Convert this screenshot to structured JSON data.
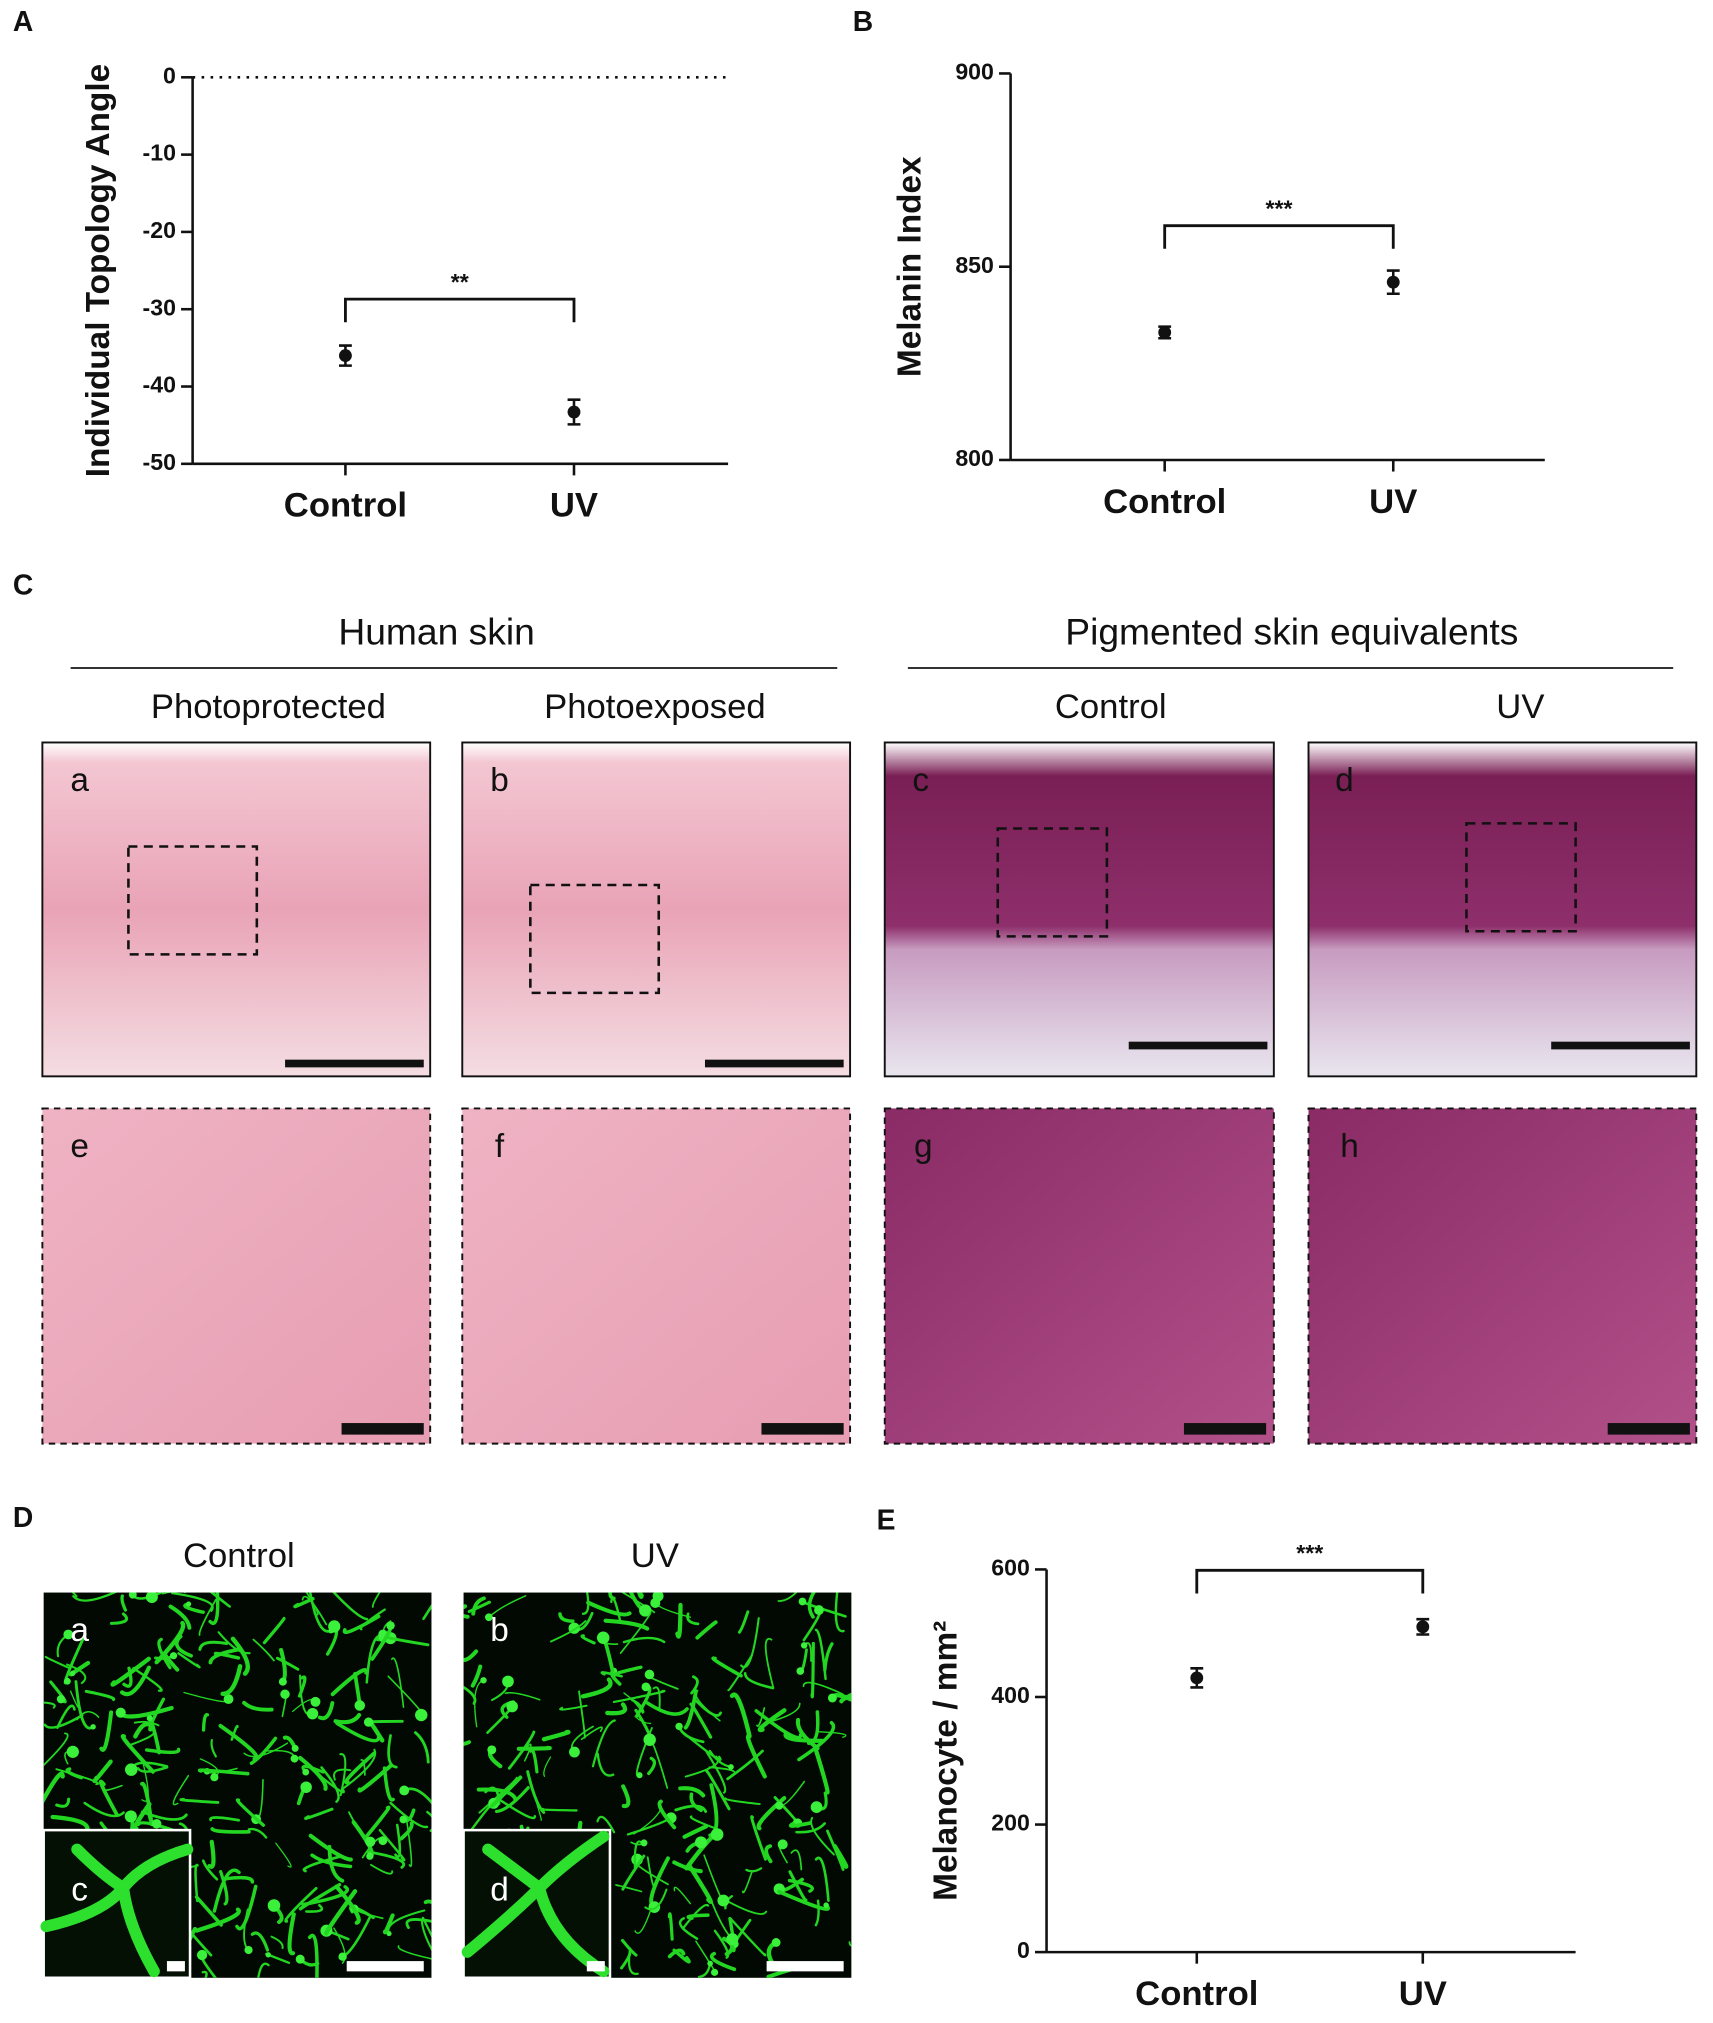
{
  "chart_data": [
    {
      "type": "dot",
      "panel": "A",
      "y_label": "Individual Topology Angle",
      "categories": [
        "Control",
        "UV"
      ],
      "values": [
        -36,
        -43.3
      ],
      "errors": [
        1.3,
        1.6
      ],
      "color": "#111111",
      "ylim": [
        -50,
        0
      ],
      "yticks": [
        0,
        -10,
        -20,
        -30,
        -40,
        -50
      ],
      "reference_line": 0,
      "annotation": "**"
    },
    {
      "type": "dot",
      "panel": "B",
      "y_label": "Melanin Index",
      "categories": [
        "Control",
        "UV"
      ],
      "values": [
        833,
        846
      ],
      "errors": [
        1.5,
        3
      ],
      "color": "#111111",
      "ylim": [
        800,
        900
      ],
      "yticks": [
        800,
        850,
        900
      ],
      "annotation": "***"
    },
    {
      "type": "dot",
      "panel": "E",
      "y_label": "Melanocyte / mm²",
      "categories": [
        "Control",
        "UV"
      ],
      "values": [
        430,
        510
      ],
      "errors": [
        15,
        12
      ],
      "color": "#111111",
      "ylim": [
        0,
        600
      ],
      "yticks": [
        0,
        200,
        400,
        600
      ],
      "annotation": "***"
    }
  ],
  "panel_c": {
    "label": "C",
    "groups": [
      "Human skin",
      "Pigmented skin equivalents"
    ],
    "columns": [
      "Photoprotected",
      "Photoexposed",
      "Control",
      "UV"
    ],
    "images": [
      "a",
      "b",
      "c",
      "d",
      "e",
      "f",
      "g",
      "h"
    ]
  },
  "panel_d": {
    "label": "D",
    "columns": [
      "Control",
      "UV"
    ],
    "images": [
      "a",
      "b"
    ],
    "insets": [
      "c",
      "d"
    ]
  }
}
